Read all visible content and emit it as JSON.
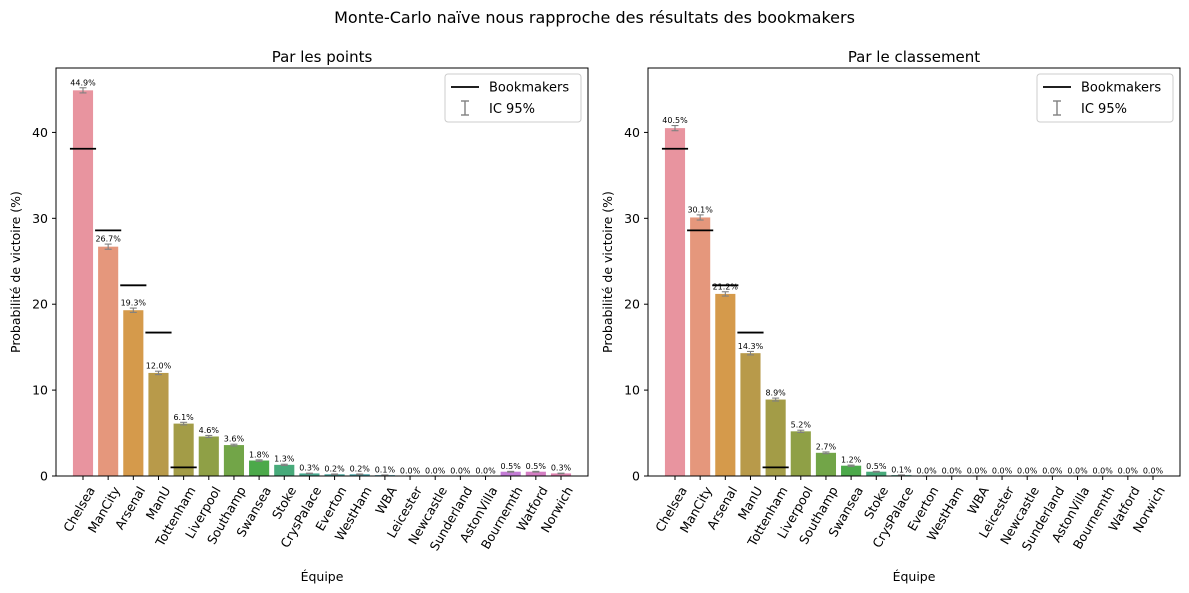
{
  "figure": {
    "title": "Monte-Carlo naïve nous rapproche des résultats des bookmakers"
  },
  "chart_data": [
    {
      "type": "bar",
      "title": "Par les points",
      "xlabel": "Équipe",
      "ylabel": "Probabilité de victoire (%)",
      "ylim": [
        0,
        47.5
      ],
      "yticks": [
        0,
        10,
        20,
        30,
        40
      ],
      "legend_position": "top-right",
      "legend": {
        "line_label": "Bookmakers",
        "ci_label": "IC 95%"
      },
      "categories": [
        "Chelsea",
        "ManCity",
        "Arsenal",
        "ManU",
        "Tottenham",
        "Liverpool",
        "Southamp",
        "Swansea",
        "Stoke",
        "CrysPalace",
        "Everton",
        "WestHam",
        "WBA",
        "Leicester",
        "Newcastle",
        "Sunderland",
        "AstonVilla",
        "Bournemth",
        "Watford",
        "Norwich"
      ],
      "values": [
        44.9,
        26.7,
        19.3,
        12.0,
        6.1,
        4.6,
        3.6,
        1.8,
        1.3,
        0.3,
        0.2,
        0.2,
        0.1,
        0.0,
        0.0,
        0.0,
        0.0,
        0.5,
        0.5,
        0.3
      ],
      "value_labels": [
        "44.9%",
        "26.7%",
        "19.3%",
        "12.0%",
        "6.1%",
        "4.6%",
        "3.6%",
        "1.8%",
        "1.3%",
        "0.3%",
        "0.2%",
        "0.2%",
        "0.1%",
        "0.0%",
        "0.0%",
        "0.0%",
        "0.0%",
        "0.5%",
        "0.5%",
        "0.3%"
      ],
      "ci_halfwidth": [
        0.3,
        0.3,
        0.25,
        0.2,
        0.15,
        0.12,
        0.1,
        0.08,
        0.07,
        0.03,
        0.03,
        0.03,
        0.02,
        0,
        0,
        0,
        0,
        0.04,
        0.04,
        0.03
      ],
      "bookmakers": [
        38.1,
        28.6,
        22.2,
        16.7,
        1.0,
        null,
        null,
        null,
        null,
        null,
        null,
        null,
        null,
        null,
        null,
        null,
        null,
        null,
        null,
        null
      ]
    },
    {
      "type": "bar",
      "title": "Par le classement",
      "xlabel": "Équipe",
      "ylabel": "Probabilité de victoire (%)",
      "ylim": [
        0,
        47.5
      ],
      "yticks": [
        0,
        10,
        20,
        30,
        40
      ],
      "legend_position": "top-right",
      "legend": {
        "line_label": "Bookmakers",
        "ci_label": "IC 95%"
      },
      "categories": [
        "Chelsea",
        "ManCity",
        "Arsenal",
        "ManU",
        "Tottenham",
        "Liverpool",
        "Southamp",
        "Swansea",
        "Stoke",
        "CrysPalace",
        "Everton",
        "WestHam",
        "WBA",
        "Leicester",
        "Newcastle",
        "Sunderland",
        "AstonVilla",
        "Bournemth",
        "Watford",
        "Norwich"
      ],
      "values": [
        40.5,
        30.1,
        21.2,
        14.3,
        8.9,
        5.2,
        2.7,
        1.2,
        0.5,
        0.1,
        0.0,
        0.0,
        0.0,
        0.0,
        0.0,
        0.0,
        0.0,
        0.0,
        0.0,
        0.0
      ],
      "value_labels": [
        "40.5%",
        "30.1%",
        "21.2%",
        "14.3%",
        "8.9%",
        "5.2%",
        "2.7%",
        "1.2%",
        "0.5%",
        "0.1%",
        "0.0%",
        "0.0%",
        "0.0%",
        "0.0%",
        "0.0%",
        "0.0%",
        "0.0%",
        "0.0%",
        "0.0%",
        "0.0%"
      ],
      "ci_halfwidth": [
        0.3,
        0.3,
        0.25,
        0.2,
        0.17,
        0.13,
        0.1,
        0.07,
        0.04,
        0.02,
        0,
        0,
        0,
        0,
        0,
        0,
        0,
        0,
        0,
        0
      ],
      "bookmakers": [
        38.1,
        28.6,
        22.2,
        16.7,
        1.0,
        null,
        null,
        null,
        null,
        null,
        null,
        null,
        null,
        null,
        null,
        null,
        null,
        null,
        null,
        null
      ]
    }
  ],
  "colors": {
    "bars": [
      "#e8949f",
      "#e5977c",
      "#d59a4b",
      "#b89a4a",
      "#a39c47",
      "#8fa046",
      "#72a548",
      "#4ca94a",
      "#47aa7a",
      "#47a88f",
      "#48a69e",
      "#49a5a9",
      "#4ba4b4",
      "#4ea2c2",
      "#5a9fd4",
      "#8593df",
      "#a888de",
      "#c47cd6",
      "#d47ec3",
      "#e085b2"
    ],
    "bookmakers_line": "#000000",
    "errorbar": "#808080"
  }
}
